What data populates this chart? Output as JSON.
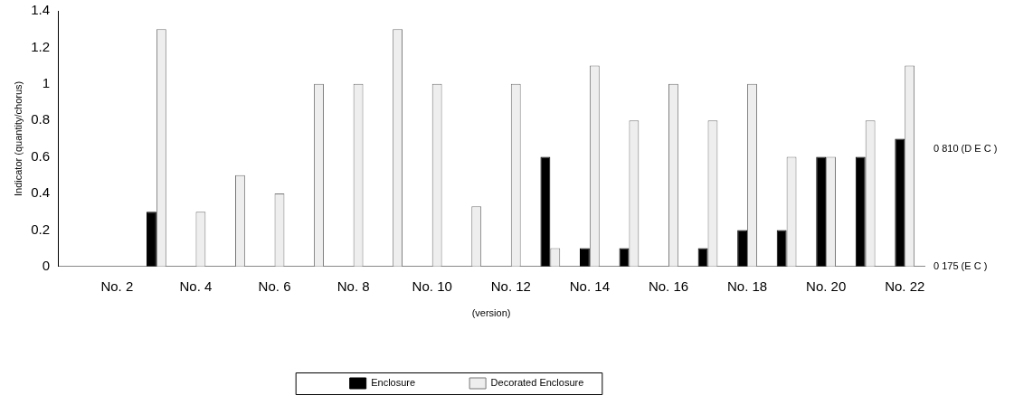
{
  "chart_data": {
    "type": "bar",
    "categories": [
      null,
      "No. 2",
      null,
      "No. 4",
      null,
      "No. 6",
      null,
      "No. 8",
      null,
      "No. 10",
      null,
      "No. 12",
      null,
      "No. 14",
      null,
      "No. 16",
      null,
      "No. 18",
      null,
      "No. 20",
      null,
      "No. 22"
    ],
    "series": [
      {
        "name": "Enclosure",
        "color": "#000000",
        "values": [
          0,
          0,
          0.3,
          0,
          0,
          0,
          0,
          0,
          0,
          0,
          0,
          0,
          0.6,
          0.1,
          0.1,
          0,
          0.1,
          0.2,
          0.2,
          0.6,
          0.6,
          0.7
        ]
      },
      {
        "name": "Decorated Enclosure",
        "color": "#eeeeee",
        "values": [
          0,
          0,
          1.3,
          0.3,
          0.5,
          0.4,
          1.0,
          1.0,
          1.3,
          1.0,
          0.33,
          1.0,
          0.1,
          1.1,
          0.8,
          1.0,
          0.8,
          1.0,
          0.6,
          0.6,
          0.8,
          1.1
        ]
      }
    ],
    "xlabel": "(version)",
    "ylabel": "Indicator (quantity/chorus)",
    "ylim": [
      0,
      1.4
    ],
    "yticks": [
      0,
      0.2,
      0.4,
      0.6,
      0.8,
      1,
      1.2,
      1.4
    ],
    "annotations": [
      "0 810 (D E C )",
      "0 175 (E C )"
    ],
    "grid": false,
    "legend": "bottom"
  }
}
